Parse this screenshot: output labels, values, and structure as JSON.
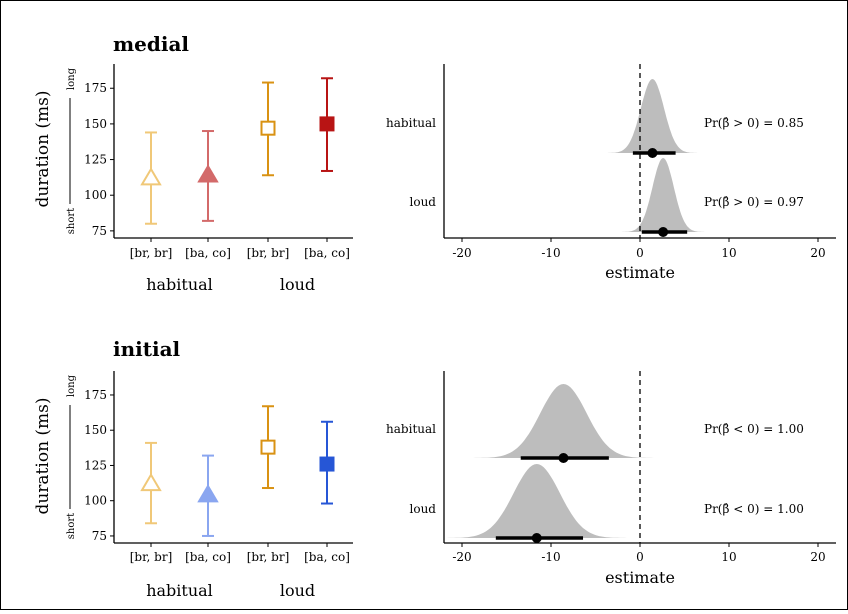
{
  "figure": {
    "panels": [
      {
        "title": "medial"
      },
      {
        "title": "initial"
      }
    ],
    "left_ylabel": "duration (ms)",
    "left_yside_low": "short",
    "left_yside_high": "long",
    "right_xlabel": "estimate"
  },
  "chart_data": [
    {
      "panel": "medial",
      "type": "scatter",
      "ylabel": "duration (ms)",
      "ylim": [
        70,
        192
      ],
      "yticks": [
        75,
        100,
        125,
        150,
        175
      ],
      "categories": [
        "[br, br]",
        "[ba, co]",
        "[br, br]",
        "[ba, co]"
      ],
      "groups": [
        {
          "label": "habitual",
          "span": [
            0,
            1
          ]
        },
        {
          "label": "loud",
          "span": [
            2,
            3
          ]
        }
      ],
      "points": [
        {
          "y": 112,
          "ymin": 80,
          "ymax": 144,
          "shape": "triangle",
          "filled": false,
          "color": "#f0c878"
        },
        {
          "y": 114,
          "ymin": 82,
          "ymax": 145,
          "shape": "triangle",
          "filled": true,
          "color": "#d36a6a"
        },
        {
          "y": 147,
          "ymin": 114,
          "ymax": 179,
          "shape": "square",
          "filled": false,
          "color": "#d99213"
        },
        {
          "y": 150,
          "ymin": 117,
          "ymax": 182,
          "shape": "square",
          "filled": true,
          "color": "#b81414"
        }
      ]
    },
    {
      "panel": "medial",
      "type": "area",
      "xlabel": "estimate",
      "xlim": [
        -22,
        21
      ],
      "xticks": [
        -20,
        -10,
        0,
        10,
        20
      ],
      "rows": [
        {
          "label": "habitual",
          "mean": 1.4,
          "sd": 1.3,
          "ci": [
            -0.8,
            4.0
          ],
          "prob_label": "Pr(β̂ > 0) = 0.85"
        },
        {
          "label": "loud",
          "mean": 2.6,
          "sd": 1.2,
          "ci": [
            0.2,
            5.3
          ],
          "prob_label": "Pr(β̂ > 0) = 0.97"
        }
      ]
    },
    {
      "panel": "initial",
      "type": "scatter",
      "ylabel": "duration (ms)",
      "ylim": [
        70,
        192
      ],
      "yticks": [
        75,
        100,
        125,
        150,
        175
      ],
      "categories": [
        "[br, br]",
        "[ba, co]",
        "[br, br]",
        "[ba, co]"
      ],
      "groups": [
        {
          "label": "habitual",
          "span": [
            0,
            1
          ]
        },
        {
          "label": "loud",
          "span": [
            2,
            3
          ]
        }
      ],
      "points": [
        {
          "y": 112,
          "ymin": 84,
          "ymax": 141,
          "shape": "triangle",
          "filled": false,
          "color": "#f0c878"
        },
        {
          "y": 104,
          "ymin": 75,
          "ymax": 132,
          "shape": "triangle",
          "filled": true,
          "color": "#8aa6f0"
        },
        {
          "y": 138,
          "ymin": 109,
          "ymax": 167,
          "shape": "square",
          "filled": false,
          "color": "#d99213"
        },
        {
          "y": 126,
          "ymin": 98,
          "ymax": 156,
          "shape": "square",
          "filled": true,
          "color": "#2656d6"
        }
      ]
    },
    {
      "panel": "initial",
      "type": "area",
      "xlabel": "estimate",
      "xlim": [
        -22,
        21
      ],
      "xticks": [
        -20,
        -10,
        0,
        10,
        20
      ],
      "rows": [
        {
          "label": "habitual",
          "mean": -8.6,
          "sd": 2.6,
          "ci": [
            -13.4,
            -3.5
          ],
          "prob_label": "Pr(β̂ < 0) = 1.00"
        },
        {
          "label": "loud",
          "mean": -11.6,
          "sd": 2.6,
          "ci": [
            -16.2,
            -6.4
          ],
          "prob_label": "Pr(β̂ < 0) = 1.00"
        }
      ]
    }
  ]
}
